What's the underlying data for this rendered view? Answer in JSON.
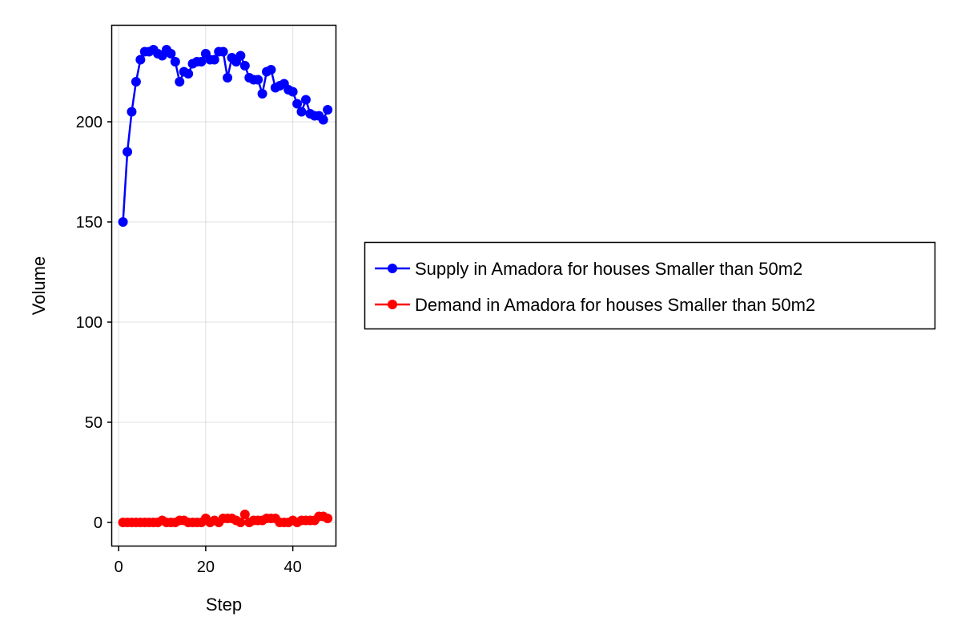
{
  "chart_data": {
    "type": "line",
    "title": "",
    "xlabel": "Step",
    "ylabel": "Volume",
    "xlim": [
      -1.5,
      50
    ],
    "ylim": [
      -12,
      248
    ],
    "xticks": [
      0,
      20,
      40
    ],
    "yticks": [
      0,
      50,
      100,
      150,
      200
    ],
    "grid": true,
    "legend_position": "right",
    "x": [
      1,
      2,
      3,
      4,
      5,
      6,
      7,
      8,
      9,
      10,
      11,
      12,
      13,
      14,
      15,
      16,
      17,
      18,
      19,
      20,
      21,
      22,
      23,
      24,
      25,
      26,
      27,
      28,
      29,
      30,
      31,
      32,
      33,
      34,
      35,
      36,
      37,
      38,
      39,
      40,
      41,
      42,
      43,
      44,
      45,
      46,
      47,
      48
    ],
    "series": [
      {
        "name": "Supply in Amadora for houses Smaller than 50m2",
        "color": "#0000ff",
        "values": [
          150,
          185,
          205,
          220,
          231,
          235,
          235,
          236,
          234,
          233,
          236,
          234,
          230,
          220,
          225,
          224,
          229,
          230,
          230,
          234,
          231,
          231,
          235,
          235,
          222,
          232,
          230,
          233,
          228,
          222,
          221,
          221,
          214,
          225,
          226,
          217,
          218,
          219,
          216,
          215,
          209,
          205,
          211,
          204,
          203,
          203,
          201,
          206
        ]
      },
      {
        "name": "Demand in Amadora for houses Smaller than 50m2",
        "color": "#ff0000",
        "values": [
          0,
          0,
          0,
          0,
          0,
          0,
          0,
          0,
          0,
          1,
          0,
          0,
          0,
          1,
          1,
          0,
          0,
          0,
          0,
          2,
          0,
          1,
          0,
          2,
          2,
          2,
          1,
          0,
          4,
          0,
          1,
          1,
          1,
          2,
          2,
          2,
          0,
          0,
          0,
          1,
          0,
          1,
          1,
          1,
          1,
          3,
          3,
          2
        ]
      }
    ]
  }
}
